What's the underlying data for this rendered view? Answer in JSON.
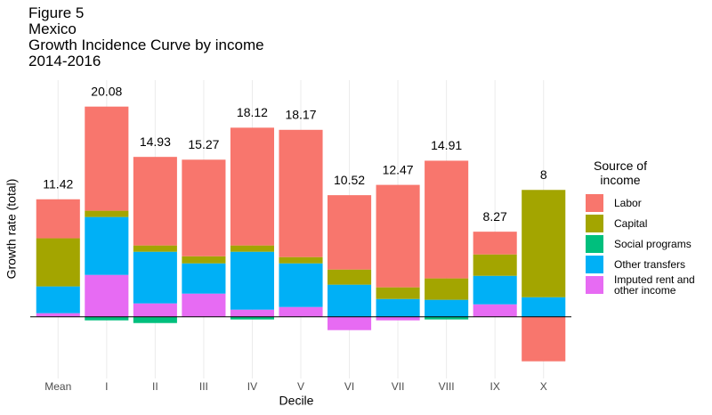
{
  "chart_data": {
    "type": "stacked-bar",
    "title": [
      "Figure 5",
      "Mexico",
      "Growth Incidence Curve by income",
      "2014-2016"
    ],
    "x_label": "Decile",
    "y_label": "Growth rate (total)",
    "legend_title": "Source of income",
    "legend": "right",
    "categories": [
      "Mean",
      "I",
      "II",
      "III",
      "IV",
      "V",
      "VI",
      "VII",
      "VIII",
      "IX",
      "X"
    ],
    "totals": [
      11.42,
      20.08,
      14.93,
      15.27,
      18.12,
      18.17,
      10.52,
      12.47,
      14.91,
      8.27,
      8
    ],
    "ylim": [
      -6,
      23
    ],
    "series": [
      {
        "name": "Imputed rent and other income",
        "color": "#E76BF3",
        "values": [
          0.35,
          4.07,
          1.3,
          2.25,
          0.69,
          0.95,
          -1.3,
          -0.35,
          0,
          1.21,
          0
        ]
      },
      {
        "name": "Other transfers",
        "color": "#00B0F6",
        "values": [
          2.6,
          5.63,
          5.02,
          2.94,
          5.63,
          4.24,
          3.12,
          1.73,
          1.65,
          2.77,
          1.9
        ]
      },
      {
        "name": "Social programs",
        "color": "#00BF7D",
        "values": [
          0,
          -0.35,
          -0.61,
          0,
          -0.26,
          0,
          0,
          0,
          -0.26,
          0,
          0
        ]
      },
      {
        "name": "Capital",
        "color": "#A3A500",
        "values": [
          4.68,
          0.61,
          0.61,
          0.69,
          0.61,
          0.61,
          1.47,
          1.13,
          2.08,
          2.08,
          10.43
        ]
      },
      {
        "name": "Labor",
        "color": "#F8766D",
        "values": [
          3.79,
          10.12,
          8.61,
          9.39,
          11.45,
          12.37,
          7.23,
          9.96,
          11.44,
          2.21,
          -4.33
        ]
      }
    ]
  }
}
